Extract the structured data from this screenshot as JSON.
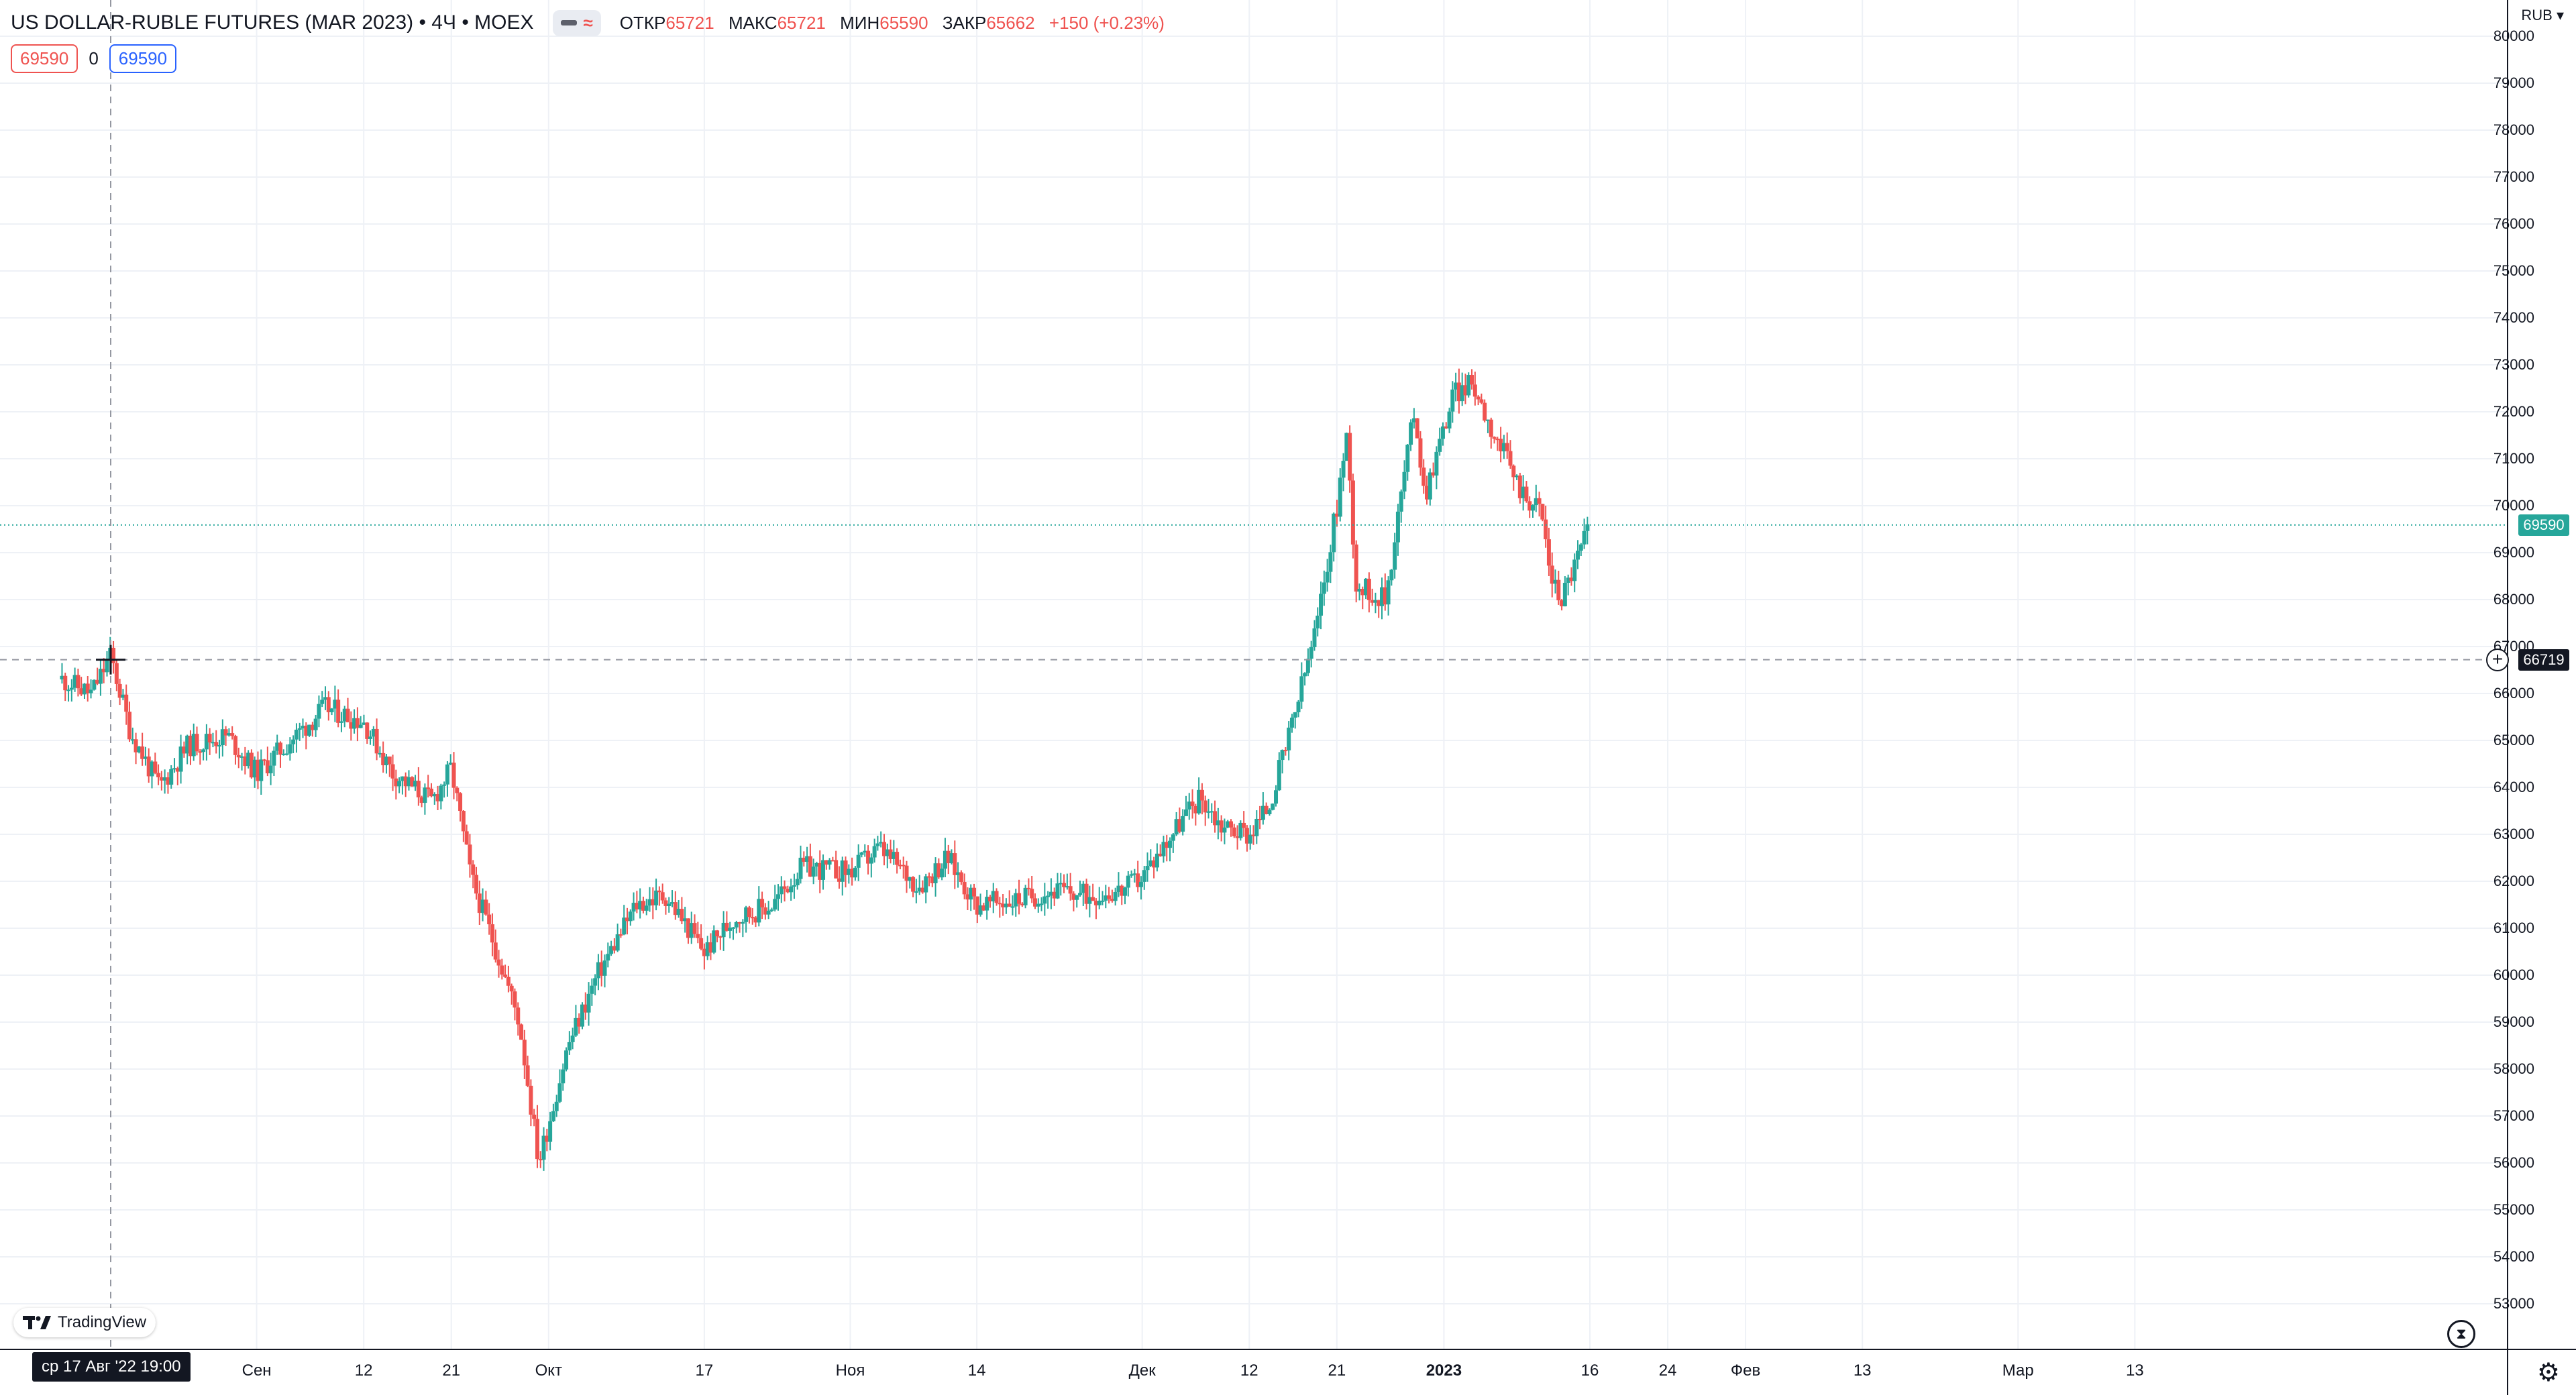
{
  "header": {
    "title": "US DOLLAR-RUBLE FUTURES (MAR 2023) • 4Ч • MOEX",
    "ohlc": [
      {
        "label": "ОТКР",
        "value": "65721"
      },
      {
        "label": "МАКС",
        "value": "65721"
      },
      {
        "label": "МИН",
        "value": "65590"
      },
      {
        "label": "ЗАКР",
        "value": "65662"
      }
    ],
    "change": "+150 (+0.23%)"
  },
  "trade": {
    "sell_price": "69590",
    "spread": "0",
    "buy_price": "69590"
  },
  "axis": {
    "currency": "RUB",
    "last_price_label": "69590",
    "crosshair_price_label": "66719",
    "crosshair_time_label": "ср 17 Авг '22   19:00"
  },
  "branding": {
    "logo_text": "TradingView"
  },
  "icons": {
    "settings": "gear-icon",
    "replay": "clock-icon",
    "add": "plus-circle-icon"
  },
  "colors": {
    "up": "#26a69a",
    "down": "#ef5350",
    "grid": "#eef1f6",
    "crosshair": "#9598a1"
  },
  "chart_data": {
    "type": "candlestick",
    "symbol": "US DOLLAR-RUBLE FUTURES (MAR 2023)",
    "interval": "4Ч",
    "exchange": "MOEX",
    "ylim": [
      52000,
      80000
    ],
    "y_ticks": [
      53000,
      54000,
      55000,
      56000,
      57000,
      58000,
      59000,
      60000,
      61000,
      62000,
      63000,
      64000,
      65000,
      66000,
      67000,
      68000,
      69000,
      70000,
      71000,
      72000,
      73000,
      74000,
      75000,
      76000,
      77000,
      78000,
      79000,
      80000
    ],
    "x_tick_labels": [
      "Сен",
      "12",
      "21",
      "Окт",
      "17",
      "Ноя",
      "14",
      "Дек",
      "12",
      "21",
      "2023",
      "16",
      "24",
      "Фев",
      "13",
      "Мар",
      "13"
    ],
    "x_tick_dates": [
      "2022-09-01",
      "2022-09-12",
      "2022-09-21",
      "2022-10-01",
      "2022-10-17",
      "2022-11-01",
      "2022-11-14",
      "2022-12-01",
      "2022-12-12",
      "2022-12-21",
      "2023-01-01",
      "2023-01-16",
      "2023-01-24",
      "2023-02-01",
      "2023-02-13",
      "2023-03-01",
      "2023-03-13"
    ],
    "trend_points": [
      {
        "date": "2022-08-12",
        "close": 66300
      },
      {
        "date": "2022-08-15",
        "close": 66000
      },
      {
        "date": "2022-08-17",
        "close": 66800
      },
      {
        "date": "2022-08-19",
        "close": 65200
      },
      {
        "date": "2022-08-22",
        "close": 64000
      },
      {
        "date": "2022-08-25",
        "close": 64900
      },
      {
        "date": "2022-08-29",
        "close": 65100
      },
      {
        "date": "2022-09-01",
        "close": 64300
      },
      {
        "date": "2022-09-05",
        "close": 65100
      },
      {
        "date": "2022-09-08",
        "close": 65700
      },
      {
        "date": "2022-09-12",
        "close": 65400
      },
      {
        "date": "2022-09-15",
        "close": 64300
      },
      {
        "date": "2022-09-19",
        "close": 63700
      },
      {
        "date": "2022-09-21",
        "close": 64400
      },
      {
        "date": "2022-09-23",
        "close": 62100
      },
      {
        "date": "2022-09-26",
        "close": 60300
      },
      {
        "date": "2022-09-28",
        "close": 59000
      },
      {
        "date": "2022-09-29",
        "close": 57500
      },
      {
        "date": "2022-09-30",
        "close": 56000
      },
      {
        "date": "2022-10-03",
        "close": 58500
      },
      {
        "date": "2022-10-06",
        "close": 60000
      },
      {
        "date": "2022-10-10",
        "close": 61500
      },
      {
        "date": "2022-10-13",
        "close": 61700
      },
      {
        "date": "2022-10-17",
        "close": 60500
      },
      {
        "date": "2022-10-20",
        "close": 61200
      },
      {
        "date": "2022-10-24",
        "close": 61500
      },
      {
        "date": "2022-10-27",
        "close": 62300
      },
      {
        "date": "2022-11-01",
        "close": 62200
      },
      {
        "date": "2022-11-04",
        "close": 62700
      },
      {
        "date": "2022-11-08",
        "close": 61900
      },
      {
        "date": "2022-11-11",
        "close": 62500
      },
      {
        "date": "2022-11-14",
        "close": 61500
      },
      {
        "date": "2022-11-18",
        "close": 61600
      },
      {
        "date": "2022-11-22",
        "close": 61800
      },
      {
        "date": "2022-11-25",
        "close": 61700
      },
      {
        "date": "2022-11-29",
        "close": 61800
      },
      {
        "date": "2022-12-01",
        "close": 62100
      },
      {
        "date": "2022-12-05",
        "close": 63300
      },
      {
        "date": "2022-12-07",
        "close": 63800
      },
      {
        "date": "2022-12-09",
        "close": 63200
      },
      {
        "date": "2022-12-12",
        "close": 63000
      },
      {
        "date": "2022-12-14",
        "close": 63600
      },
      {
        "date": "2022-12-16",
        "close": 65000
      },
      {
        "date": "2022-12-19",
        "close": 67500
      },
      {
        "date": "2022-12-21",
        "close": 70000
      },
      {
        "date": "2022-12-22",
        "close": 71500
      },
      {
        "date": "2022-12-23",
        "close": 68300
      },
      {
        "date": "2022-12-26",
        "close": 68000
      },
      {
        "date": "2022-12-28",
        "close": 70800
      },
      {
        "date": "2022-12-29",
        "close": 72100
      },
      {
        "date": "2022-12-30",
        "close": 70200
      },
      {
        "date": "2023-01-02",
        "close": 72400
      },
      {
        "date": "2023-01-04",
        "close": 72600
      },
      {
        "date": "2023-01-06",
        "close": 71600
      },
      {
        "date": "2023-01-09",
        "close": 70300
      },
      {
        "date": "2023-01-11",
        "close": 69900
      },
      {
        "date": "2023-01-12",
        "close": 68500
      },
      {
        "date": "2023-01-13",
        "close": 68000
      },
      {
        "date": "2023-01-16",
        "close": 69590
      }
    ],
    "last_price": 69590,
    "crosshair": {
      "date": "2022-08-17",
      "time": "19:00",
      "price": 66719
    }
  }
}
